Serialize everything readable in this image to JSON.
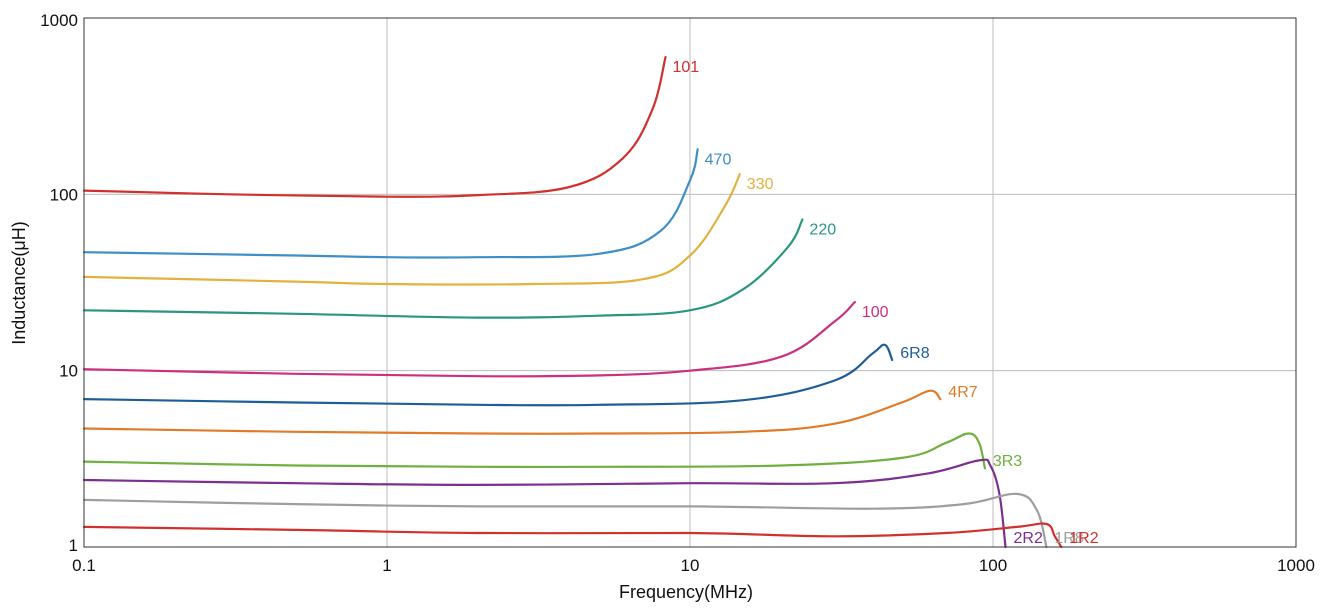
{
  "chart_data": {
    "type": "line",
    "title": "",
    "xlabel": "Frequency(MHz)",
    "ylabel": "Inductance(μH)",
    "x_scale": "log",
    "y_scale": "log",
    "xlim": [
      0.1,
      1000
    ],
    "ylim": [
      1,
      1000
    ],
    "grid": true,
    "legend": "inline labels at curve ends",
    "x_ticks": [
      "0.1",
      "1",
      "10",
      "100",
      "1000"
    ],
    "y_ticks": [
      "1",
      "10",
      "100",
      "1000"
    ],
    "series": [
      {
        "name": "101",
        "color": "#d0312d",
        "x": [
          0.1,
          0.3,
          1,
          2,
          4,
          6,
          7.5,
          8.3
        ],
        "y": [
          105,
          100,
          97,
          99,
          110,
          160,
          300,
          600
        ]
      },
      {
        "name": "470",
        "color": "#3d8fc6",
        "x": [
          0.1,
          0.5,
          1,
          2,
          5,
          8,
          10,
          10.6
        ],
        "y": [
          47,
          45,
          44,
          44,
          46,
          62,
          120,
          180
        ]
      },
      {
        "name": "330",
        "color": "#e3b23c",
        "x": [
          0.1,
          0.5,
          1,
          3,
          7,
          10,
          13,
          14.6
        ],
        "y": [
          34,
          32,
          31,
          31,
          33,
          45,
          85,
          130
        ]
      },
      {
        "name": "220",
        "color": "#2a9680",
        "x": [
          0.1,
          0.5,
          2,
          5,
          10,
          15,
          21,
          23.5
        ],
        "y": [
          22,
          21,
          20,
          20.5,
          22,
          29,
          50,
          72
        ]
      },
      {
        "name": "100",
        "color": "#cc2f7e",
        "x": [
          0.1,
          0.5,
          2,
          5,
          10,
          20,
          30,
          35
        ],
        "y": [
          10.2,
          9.6,
          9.3,
          9.4,
          10,
          12,
          19,
          24.5
        ]
      },
      {
        "name": "6R8",
        "color": "#1f5d99",
        "x": [
          0.1,
          0.5,
          2,
          5,
          15,
          30,
          40,
          44,
          46.5
        ],
        "y": [
          6.9,
          6.6,
          6.4,
          6.4,
          6.8,
          8.8,
          12.5,
          14,
          11.5
        ]
      },
      {
        "name": "4R7",
        "color": "#e07b2a",
        "x": [
          0.1,
          0.5,
          2,
          5,
          15,
          30,
          50,
          62,
          67
        ],
        "y": [
          4.7,
          4.5,
          4.4,
          4.4,
          4.5,
          5,
          6.6,
          7.7,
          6.9
        ]
      },
      {
        "name": "3R3",
        "color": "#6fb03f",
        "x": [
          0.1,
          0.5,
          2,
          5,
          20,
          50,
          70,
          83,
          90,
          94
        ],
        "y": [
          3.05,
          2.9,
          2.85,
          2.85,
          2.9,
          3.2,
          3.9,
          4.4,
          3.9,
          2.8
        ]
      },
      {
        "name": "2R2",
        "color": "#7b2f8e",
        "x": [
          0.1,
          0.5,
          2,
          10,
          30,
          60,
          90,
          98,
          105,
          110
        ],
        "y": [
          2.4,
          2.3,
          2.25,
          2.3,
          2.3,
          2.6,
          3.1,
          2.9,
          2.0,
          1.0
        ]
      },
      {
        "name": "1R8",
        "color": "#9e9e9e",
        "x": [
          0.1,
          0.5,
          2,
          10,
          40,
          80,
          120,
          140,
          150
        ],
        "y": [
          1.85,
          1.75,
          1.7,
          1.7,
          1.65,
          1.75,
          2.0,
          1.6,
          1.0
        ]
      },
      {
        "name": "1R2",
        "color": "#d0312d",
        "x": [
          0.1,
          0.5,
          2,
          10,
          30,
          70,
          120,
          150,
          160,
          168
        ],
        "y": [
          1.3,
          1.25,
          1.2,
          1.2,
          1.15,
          1.2,
          1.3,
          1.35,
          1.15,
          1.0
        ]
      }
    ]
  }
}
